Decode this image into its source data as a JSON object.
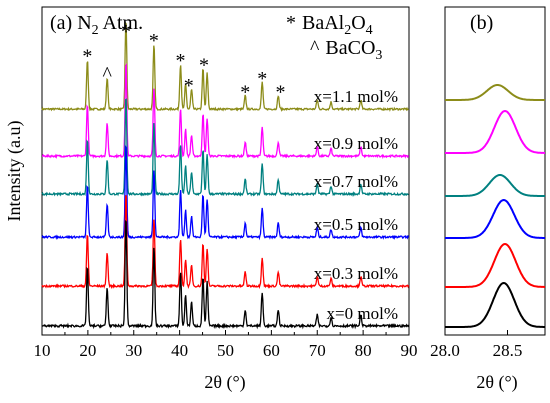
{
  "chart_data": [
    {
      "panel_label": "(a) N",
      "panel_label_sub": "2",
      "panel_label_tail": " Atm.",
      "type": "line",
      "xlabel": "2θ (°)",
      "ylabel": "Intensity (a.u)",
      "xlim": [
        10,
        90
      ],
      "xticks": [
        "10",
        "20",
        "30",
        "40",
        "50",
        "60",
        "70",
        "80",
        "90"
      ],
      "legend": {
        "phase1_symbol": "*",
        "phase1_name": "BaAl",
        "phase1_sub1": "2",
        "phase1_mid": "O",
        "phase1_sub2": "4",
        "phase2_symbol": "^",
        "phase2_name": "BaCO",
        "phase2_sub": "3"
      },
      "peaks": {
        "positions": [
          19.9,
          24.2,
          28.3,
          34.4,
          40.2,
          41.3,
          42.6,
          45.1,
          46.0,
          54.3,
          58.0,
          61.5,
          70.0,
          73.0,
          79.5
        ],
        "relative_heights": [
          0.55,
          0.35,
          1.0,
          0.72,
          0.5,
          0.28,
          0.22,
          0.45,
          0.4,
          0.15,
          0.3,
          0.15,
          0.1,
          0.08,
          0.1
        ]
      },
      "annotations": [
        {
          "symbol": "*",
          "x": 19.9
        },
        {
          "symbol": "^",
          "x": 24.2
        },
        {
          "symbol": "*",
          "x": 28.3
        },
        {
          "symbol": "*",
          "x": 34.4
        },
        {
          "symbol": "*",
          "x": 40.2
        },
        {
          "symbol": "*",
          "x": 42.0
        },
        {
          "symbol": "*",
          "x": 45.3
        },
        {
          "symbol": "*",
          "x": 54.3
        },
        {
          "symbol": "*",
          "x": 58.0
        },
        {
          "symbol": "*",
          "x": 62.0
        }
      ],
      "series": [
        {
          "name": "x=1.1 mol%",
          "color": "#8c8c19"
        },
        {
          "name": "x=0.9 mol%",
          "color": "#ff00ff"
        },
        {
          "name": "x=0.7 mol%",
          "color": "#008080"
        },
        {
          "name": "x=0.5 mol%",
          "color": "#0000ff"
        },
        {
          "name": "x=0.3 mol%",
          "color": "#ff0000"
        },
        {
          "name": "x=0 mol%",
          "color": "#000000"
        }
      ]
    },
    {
      "panel_label": "(b)",
      "type": "line",
      "xlabel": "2θ (°)",
      "xlim": [
        28.0,
        28.8
      ],
      "xticks": [
        "28.0",
        "28.5"
      ],
      "series": [
        {
          "center": 28.42,
          "color": "#8c8c19"
        },
        {
          "center": 28.48,
          "color": "#ff00ff"
        },
        {
          "center": 28.44,
          "color": "#008080"
        },
        {
          "center": 28.47,
          "color": "#0000ff"
        },
        {
          "center": 28.48,
          "color": "#ff0000"
        },
        {
          "center": 28.47,
          "color": "#000000"
        }
      ]
    }
  ]
}
